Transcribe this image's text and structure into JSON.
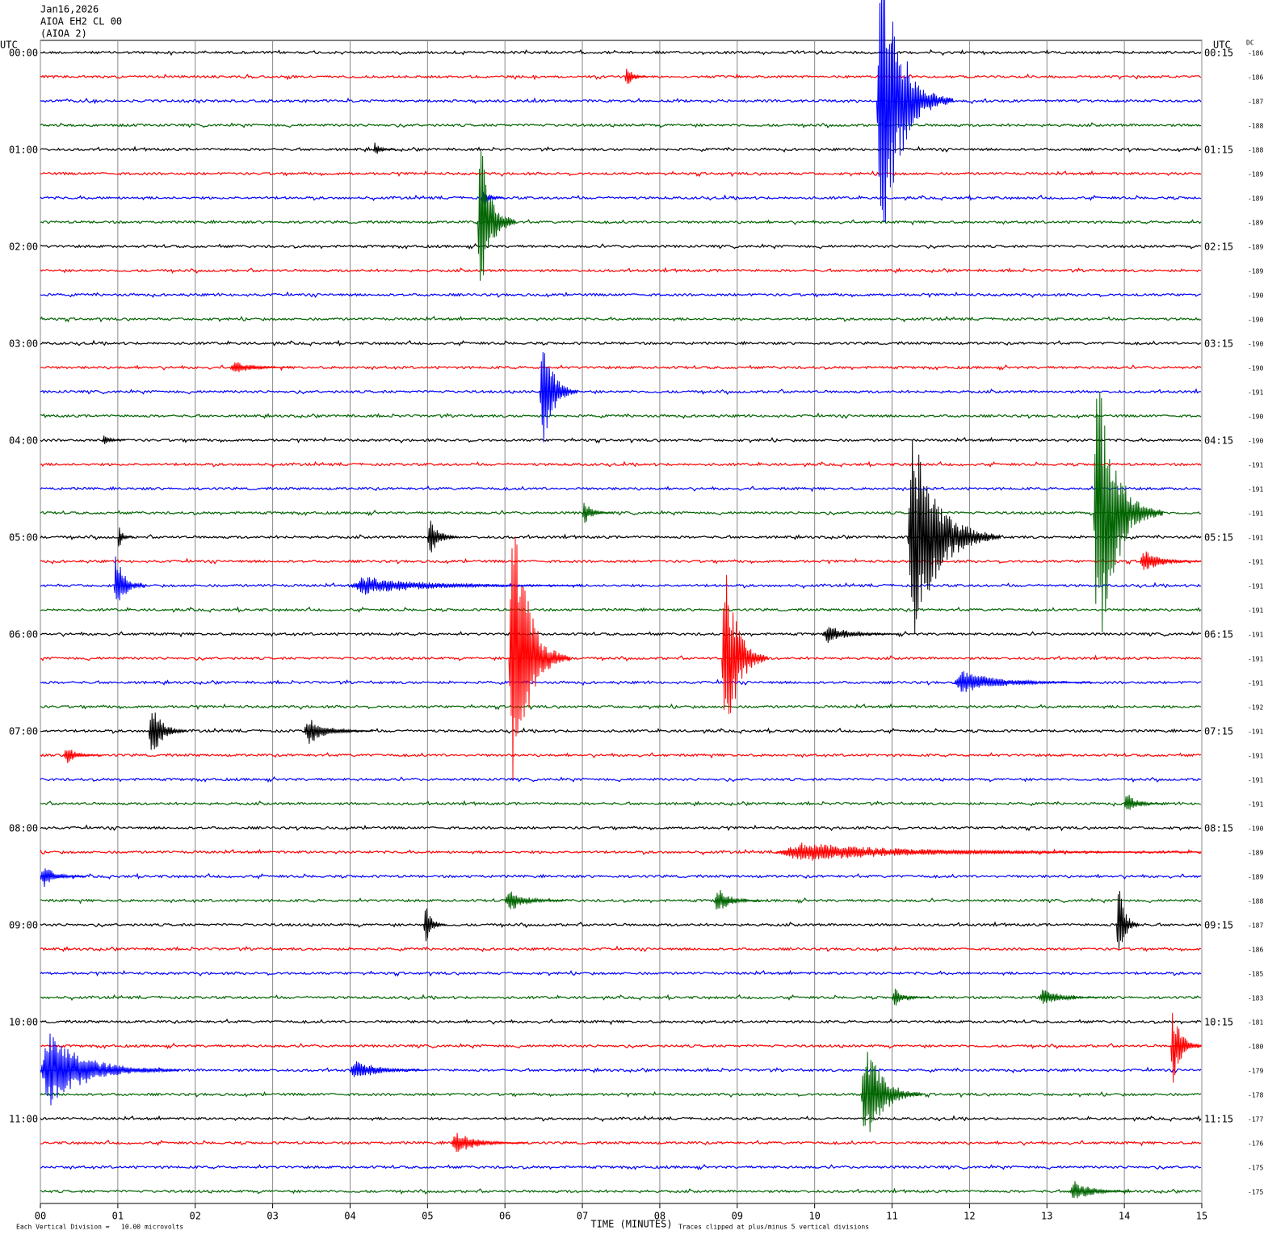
{
  "header": {
    "date": "Jan16,2026",
    "station": "AIOA EH2 CL 00",
    "name": "(AIOA 2)"
  },
  "chart_data": {
    "type": "helicorder",
    "utc_left": "UTC",
    "utc_right": "UTC",
    "dc_label": "DC",
    "row_colors": [
      "#000000",
      "#ff0000",
      "#0000ff",
      "#006400"
    ],
    "hour_labels_left": [
      "00:00",
      "01:00",
      "02:00",
      "03:00",
      "04:00",
      "05:00",
      "06:00",
      "07:00",
      "08:00",
      "09:00",
      "10:00",
      "11:00"
    ],
    "hour_labels_right": [
      "00:15",
      "01:15",
      "02:15",
      "03:15",
      "04:15",
      "05:15",
      "06:15",
      "07:15",
      "08:15",
      "09:15",
      "10:15",
      "11:15"
    ],
    "dc_values": [
      -186,
      -186,
      -187,
      -188,
      -188,
      -189,
      -189,
      -189,
      -189,
      -189,
      -190,
      -190,
      -190,
      -190,
      -191,
      -190,
      -190,
      -191,
      -191,
      -191,
      -191,
      -191,
      -191,
      -191,
      -191,
      -191,
      -191,
      -192,
      -191,
      -191,
      -191,
      -191,
      -190,
      -189,
      -189,
      -188,
      -187,
      -186,
      -185,
      -183,
      -181,
      -180,
      -179,
      -178,
      -177,
      -176,
      -175,
      -175
    ],
    "xlim": [
      0,
      15
    ],
    "xticks": [
      {
        "value": 0,
        "label": "00"
      },
      {
        "value": 1,
        "label": "01"
      },
      {
        "value": 2,
        "label": "02"
      },
      {
        "value": 3,
        "label": "03"
      },
      {
        "value": 4,
        "label": "04"
      },
      {
        "value": 5,
        "label": "05"
      },
      {
        "value": 6,
        "label": "06"
      },
      {
        "value": 7,
        "label": "07"
      },
      {
        "value": 8,
        "label": "08"
      },
      {
        "value": 9,
        "label": "09"
      },
      {
        "value": 10,
        "label": "10"
      },
      {
        "value": 11,
        "label": "11"
      },
      {
        "value": 12,
        "label": "12"
      },
      {
        "value": 13,
        "label": "13"
      },
      {
        "value": 14,
        "label": "14"
      },
      {
        "value": 15,
        "label": "15"
      }
    ],
    "xlabel": "TIME (MINUTES)",
    "grid": true,
    "footnote_left": "Each Vertical Division =   10.00 microvolts",
    "footnote_right": "Traces clipped at plus/minus 5 vertical divisions",
    "events": [
      {
        "row": 1,
        "minute": 7.55,
        "amplitude": 0.5,
        "duration": 0.3
      },
      {
        "row": 2,
        "minute": 10.8,
        "amplitude": 5,
        "duration": 1.0
      },
      {
        "row": 4,
        "minute": 4.3,
        "amplitude": 0.3,
        "duration": 0.3
      },
      {
        "row": 6,
        "minute": 5.7,
        "amplitude": 0.5,
        "duration": 0.3
      },
      {
        "row": 7,
        "minute": 5.65,
        "amplitude": 3.8,
        "duration": 0.5
      },
      {
        "row": 13,
        "minute": 2.45,
        "amplitude": 0.3,
        "duration": 0.8
      },
      {
        "row": 14,
        "minute": 6.45,
        "amplitude": 2.7,
        "duration": 0.5
      },
      {
        "row": 16,
        "minute": 0.8,
        "amplitude": 0.3,
        "duration": 0.3
      },
      {
        "row": 19,
        "minute": 7.0,
        "amplitude": 0.5,
        "duration": 0.4
      },
      {
        "row": 19,
        "minute": 13.6,
        "amplitude": 5,
        "duration": 0.9
      },
      {
        "row": 20,
        "minute": 1.0,
        "amplitude": 0.5,
        "duration": 0.2
      },
      {
        "row": 20,
        "minute": 5.0,
        "amplitude": 1.0,
        "duration": 0.4
      },
      {
        "row": 20,
        "minute": 11.2,
        "amplitude": 4.6,
        "duration": 1.2
      },
      {
        "row": 21,
        "minute": 14.2,
        "amplitude": 0.5,
        "duration": 0.8
      },
      {
        "row": 22,
        "minute": 0.95,
        "amplitude": 1.5,
        "duration": 0.4
      },
      {
        "row": 22,
        "minute": 4.0,
        "amplitude": 0.4,
        "duration": 3.0
      },
      {
        "row": 24,
        "minute": 10.1,
        "amplitude": 0.4,
        "duration": 1.0
      },
      {
        "row": 25,
        "minute": 6.05,
        "amplitude": 5,
        "duration": 0.8
      },
      {
        "row": 25,
        "minute": 8.8,
        "amplitude": 4.5,
        "duration": 0.6
      },
      {
        "row": 26,
        "minute": 11.8,
        "amplitude": 0.5,
        "duration": 1.8
      },
      {
        "row": 28,
        "minute": 1.4,
        "amplitude": 1.3,
        "duration": 0.5
      },
      {
        "row": 28,
        "minute": 3.4,
        "amplitude": 0.6,
        "duration": 0.9
      },
      {
        "row": 29,
        "minute": 0.3,
        "amplitude": 0.4,
        "duration": 0.5
      },
      {
        "row": 31,
        "minute": 14.0,
        "amplitude": 0.5,
        "duration": 0.5
      },
      {
        "row": 33,
        "minute": 9.5,
        "amplitude": 0.4,
        "duration": 5.5
      },
      {
        "row": 34,
        "minute": 0.0,
        "amplitude": 0.5,
        "duration": 0.6
      },
      {
        "row": 35,
        "minute": 6.0,
        "amplitude": 0.5,
        "duration": 0.8
      },
      {
        "row": 35,
        "minute": 8.7,
        "amplitude": 0.6,
        "duration": 0.6
      },
      {
        "row": 36,
        "minute": 4.95,
        "amplitude": 1.0,
        "duration": 0.3
      },
      {
        "row": 36,
        "minute": 13.9,
        "amplitude": 2.0,
        "duration": 0.3
      },
      {
        "row": 39,
        "minute": 11.0,
        "amplitude": 0.4,
        "duration": 0.5
      },
      {
        "row": 39,
        "minute": 12.9,
        "amplitude": 0.4,
        "duration": 0.8
      },
      {
        "row": 41,
        "minute": 14.6,
        "amplitude": 1.8,
        "duration": 0.4
      },
      {
        "row": 42,
        "minute": 0.0,
        "amplitude": 1.6,
        "duration": 1.8
      },
      {
        "row": 42,
        "minute": 4.0,
        "amplitude": 0.5,
        "duration": 1.0
      },
      {
        "row": 43,
        "minute": 10.6,
        "amplitude": 2.5,
        "duration": 0.8
      },
      {
        "row": 45,
        "minute": 5.3,
        "amplitude": 0.5,
        "duration": 1.0
      },
      {
        "row": 47,
        "minute": 13.3,
        "amplitude": 0.5,
        "duration": 0.8
      }
    ]
  }
}
